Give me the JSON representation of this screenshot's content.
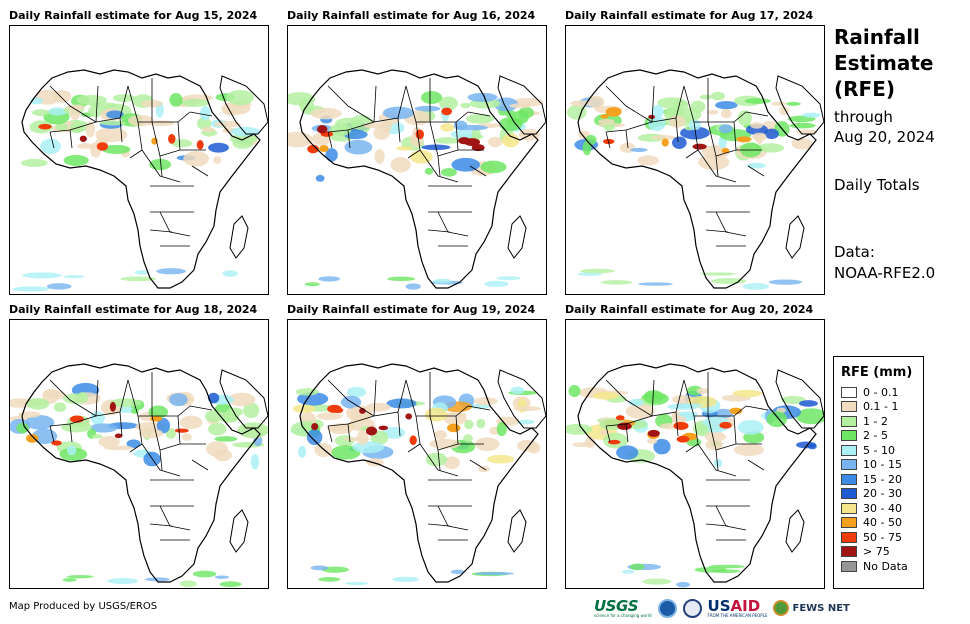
{
  "panels": [
    {
      "title": "Daily Rainfall estimate for Aug 15, 2024",
      "intensity": 0.35
    },
    {
      "title": "Daily Rainfall estimate for Aug 16, 2024",
      "intensity": 0.75
    },
    {
      "title": "Daily Rainfall estimate for Aug 17, 2024",
      "intensity": 0.6
    },
    {
      "title": "Daily Rainfall estimate for Aug 18, 2024",
      "intensity": 0.45
    },
    {
      "title": "Daily Rainfall estimate for Aug 19, 2024",
      "intensity": 0.7
    },
    {
      "title": "Daily Rainfall estimate for Aug 20, 2024",
      "intensity": 0.85
    }
  ],
  "side": {
    "title_lines": [
      "Rainfall",
      "Estimate",
      "(RFE)"
    ],
    "through_label": "through",
    "through_date": "Aug 20, 2024",
    "daily_totals": "Daily Totals",
    "data_label": "Data:",
    "data_source": "NOAA-RFE2.0"
  },
  "legend": {
    "title": "RFE (mm)",
    "items": [
      {
        "label": "0 - 0.1",
        "color": "#ffffff"
      },
      {
        "label": "0.1 - 1",
        "color": "#f0dcbe"
      },
      {
        "label": "1 - 2",
        "color": "#b4f0a0"
      },
      {
        "label": "2 - 5",
        "color": "#6ee664"
      },
      {
        "label": "5 - 10",
        "color": "#aaf0f5"
      },
      {
        "label": "10 - 15",
        "color": "#78b4f0"
      },
      {
        "label": "15 - 20",
        "color": "#3c8ce6"
      },
      {
        "label": "20 - 30",
        "color": "#1e5ad2"
      },
      {
        "label": "30 - 40",
        "color": "#f5e68c"
      },
      {
        "label": "40 - 50",
        "color": "#f5a01e"
      },
      {
        "label": "50 - 75",
        "color": "#f03c0a"
      },
      {
        "label": "> 75",
        "color": "#a01414"
      },
      {
        "label": "No Data",
        "color": "#969696"
      }
    ]
  },
  "credit": "Map Produced by USGS/EROS",
  "logos": {
    "usgs": "USGS",
    "usgs_tagline": "science for a changing world",
    "usaid_us": "US",
    "usaid_aid": "AID",
    "usaid_tagline": "FROM THE AMERICAN PEOPLE",
    "fews": "FEWS NET"
  }
}
